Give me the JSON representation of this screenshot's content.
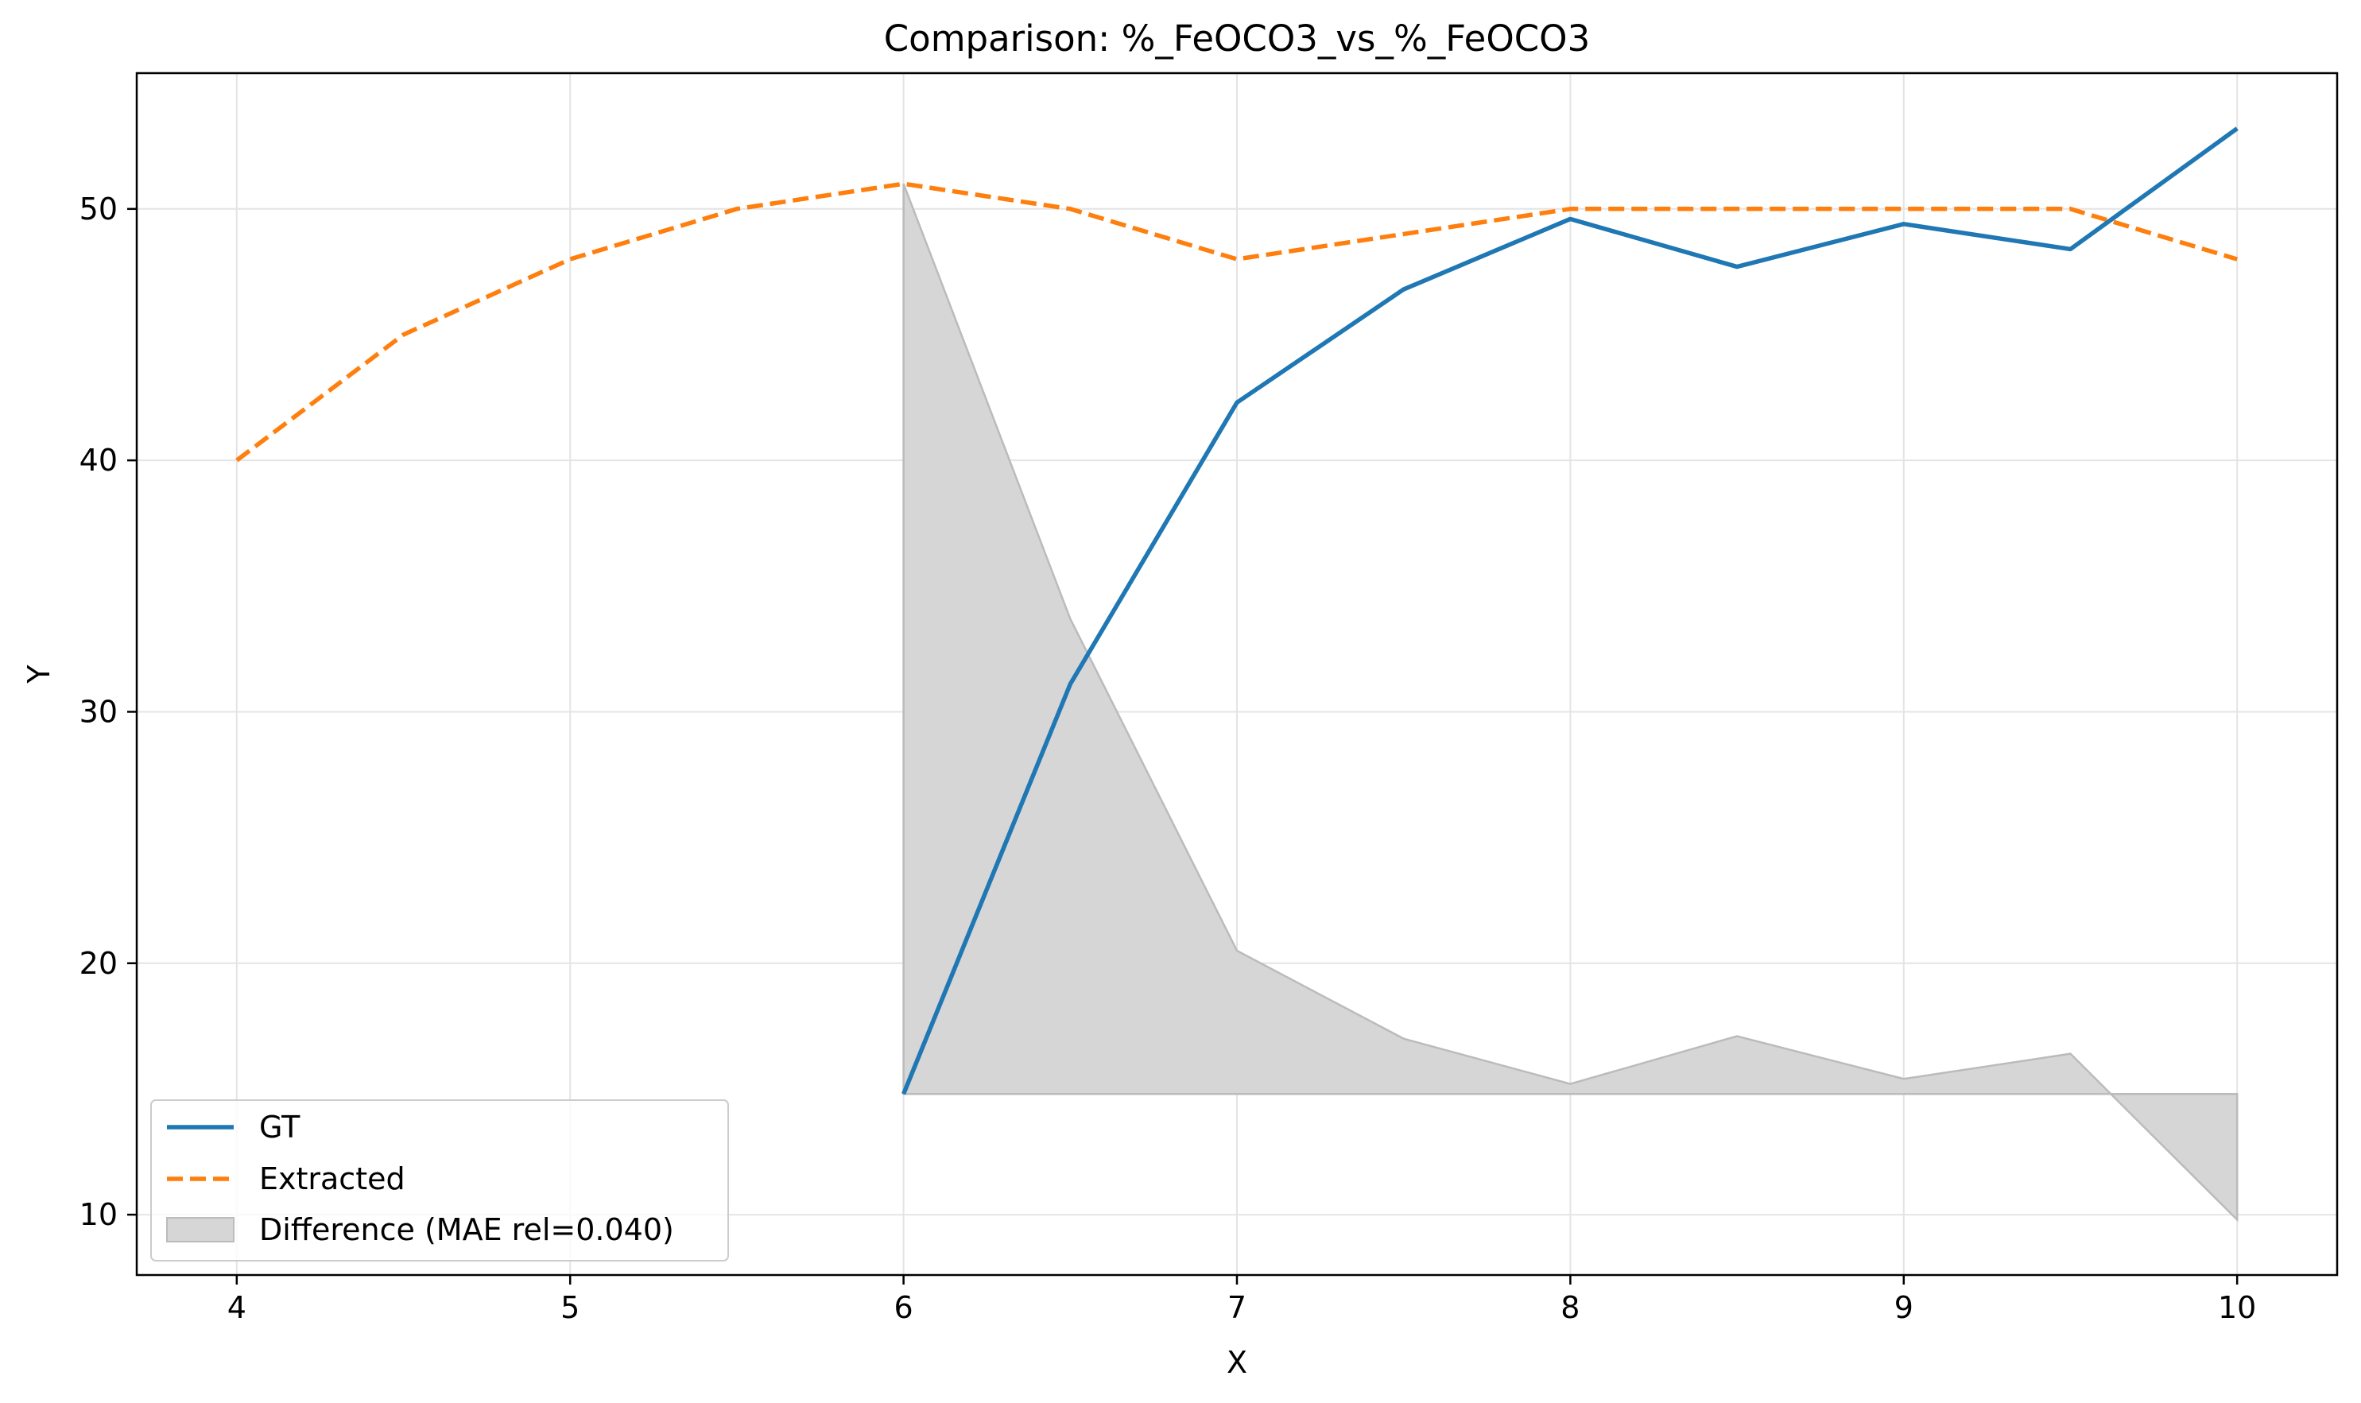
{
  "chart_data": {
    "type": "line",
    "title": "Comparison: %_FeOCO3_vs_%_FeOCO3",
    "xlabel": "X",
    "ylabel": "Y",
    "xlim": [
      3.7,
      10.3
    ],
    "ylim": [
      7.6,
      55.4
    ],
    "xticks": [
      4,
      5,
      6,
      7,
      8,
      9,
      10
    ],
    "yticks": [
      10,
      20,
      30,
      40,
      50
    ],
    "grid": true,
    "legend_position": "bottom-left",
    "series": [
      {
        "name": "GT",
        "style": "solid",
        "color": "#1f77b4",
        "x": [
          6.0,
          6.5,
          7.0,
          7.5,
          8.0,
          8.5,
          9.0,
          9.5,
          10.0
        ],
        "y": [
          14.8,
          31.1,
          42.3,
          46.8,
          49.6,
          47.7,
          49.4,
          48.4,
          53.2
        ]
      },
      {
        "name": "Extracted",
        "style": "dashed",
        "color": "#ff7f0e",
        "x": [
          4.0,
          4.5,
          5.0,
          5.5,
          6.0,
          6.5,
          7.0,
          7.5,
          8.0,
          8.5,
          9.0,
          9.5,
          10.0
        ],
        "y": [
          40,
          45,
          48,
          50,
          51,
          50,
          48,
          49,
          50,
          50,
          50,
          50,
          48
        ]
      }
    ],
    "difference_area": {
      "name": "Difference (MAE rel=0.040)",
      "color": "#d6d6d6",
      "edge_color": "#bbbbbb",
      "baseline": 14.8,
      "x": [
        6.0,
        6.5,
        7.0,
        7.5,
        8.0,
        8.5,
        9.0,
        9.5,
        10.0
      ],
      "y": [
        51.0,
        33.7,
        20.5,
        17.0,
        15.2,
        17.1,
        15.4,
        16.4,
        9.8
      ]
    }
  }
}
